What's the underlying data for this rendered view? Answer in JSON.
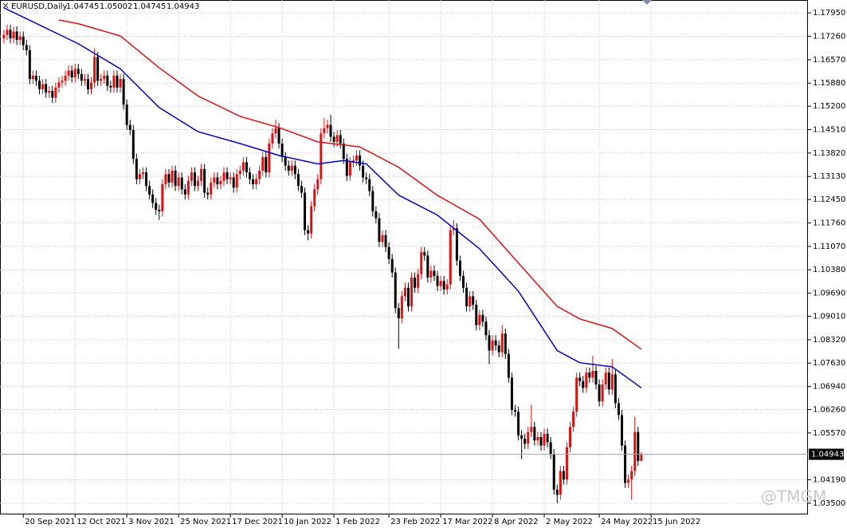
{
  "chart_data": {
    "type": "candlestick",
    "title": "EURUSD,Daily",
    "watermark": "@TMGM",
    "ylim": [
      1.0317,
      1.1833
    ],
    "xlim": [
      -1.2,
      248.5
    ],
    "grid": true,
    "up_color": "#e01010",
    "down_color": "#000000",
    "yticks": [
      {
        "value": 1.1795,
        "label": "1.17950"
      },
      {
        "value": 1.1726,
        "label": "1.17260"
      },
      {
        "value": 1.1657,
        "label": "1.16570"
      },
      {
        "value": 1.1588,
        "label": "1.15880"
      },
      {
        "value": 1.152,
        "label": "1.15200"
      },
      {
        "value": 1.1451,
        "label": "1.14510"
      },
      {
        "value": 1.1382,
        "label": "1.13820"
      },
      {
        "value": 1.1313,
        "label": "1.13130"
      },
      {
        "value": 1.1245,
        "label": "1.12450"
      },
      {
        "value": 1.1176,
        "label": "1.11760"
      },
      {
        "value": 1.1107,
        "label": "1.11070"
      },
      {
        "value": 1.1038,
        "label": "1.10380"
      },
      {
        "value": 1.0969,
        "label": "1.09690"
      },
      {
        "value": 1.0901,
        "label": "1.09010"
      },
      {
        "value": 1.0832,
        "label": "1.08320"
      },
      {
        "value": 1.0763,
        "label": "1.07630"
      },
      {
        "value": 1.0694,
        "label": "1.06940"
      },
      {
        "value": 1.0626,
        "label": "1.06260"
      },
      {
        "value": 1.0557,
        "label": "1.05570"
      },
      {
        "value": 1.0419,
        "label": "1.04190"
      },
      {
        "value": 1.035,
        "label": "1.03500"
      }
    ],
    "xticks": [
      {
        "value": 6,
        "label": "20 Sep 2021"
      },
      {
        "value": 22,
        "label": "12 Oct 2021"
      },
      {
        "value": 38,
        "label": "3 Nov 2021"
      },
      {
        "value": 54,
        "label": "25 Nov 2021"
      },
      {
        "value": 70,
        "label": "17 Dec 2021"
      },
      {
        "value": 86,
        "label": "10 Jan 2022"
      },
      {
        "value": 102,
        "label": "1 Feb 2022"
      },
      {
        "value": 119,
        "label": "23 Feb 2022"
      },
      {
        "value": 135,
        "label": "17 Mar 2022"
      },
      {
        "value": 151,
        "label": "8 Apr 2022"
      },
      {
        "value": 167,
        "label": "2 May 2022"
      },
      {
        "value": 184,
        "label": "24 May 2022"
      },
      {
        "value": 200,
        "label": "15 Jun 2022"
      }
    ],
    "ohlc": [
      [
        1.172,
        1.1745,
        1.1705,
        1.173
      ],
      [
        1.173,
        1.176,
        1.1715,
        1.1745
      ],
      [
        1.1745,
        1.176,
        1.1705,
        1.172
      ],
      [
        1.172,
        1.1755,
        1.1705,
        1.174
      ],
      [
        1.174,
        1.1755,
        1.17,
        1.1715
      ],
      [
        1.1715,
        1.174,
        1.17,
        1.1725
      ],
      [
        1.1725,
        1.174,
        1.1685,
        1.17
      ],
      [
        1.17,
        1.1715,
        1.167,
        1.1685
      ],
      [
        1.1685,
        1.17,
        1.1585,
        1.16
      ],
      [
        1.16,
        1.1625,
        1.1585,
        1.161
      ],
      [
        1.161,
        1.1625,
        1.158,
        1.1595
      ],
      [
        1.1595,
        1.161,
        1.1555,
        1.157
      ],
      [
        1.157,
        1.16,
        1.1555,
        1.1585
      ],
      [
        1.1585,
        1.16,
        1.1545,
        1.156
      ],
      [
        1.156,
        1.158,
        1.1545,
        1.1565
      ],
      [
        1.1565,
        1.158,
        1.153,
        1.1545
      ],
      [
        1.1545,
        1.159,
        1.153,
        1.1575
      ],
      [
        1.1575,
        1.1605,
        1.156,
        1.159
      ],
      [
        1.159,
        1.161,
        1.1575,
        1.1595
      ],
      [
        1.1595,
        1.1625,
        1.158,
        1.161
      ],
      [
        1.161,
        1.164,
        1.1595,
        1.1625
      ],
      [
        1.1625,
        1.164,
        1.159,
        1.1605
      ],
      [
        1.1605,
        1.1645,
        1.159,
        1.163
      ],
      [
        1.163,
        1.1645,
        1.16,
        1.1615
      ],
      [
        1.1615,
        1.163,
        1.158,
        1.1595
      ],
      [
        1.1595,
        1.1615,
        1.158,
        1.16
      ],
      [
        1.16,
        1.1615,
        1.1555,
        1.157
      ],
      [
        1.157,
        1.1605,
        1.1555,
        1.159
      ],
      [
        1.159,
        1.169,
        1.1575,
        1.1665
      ],
      [
        1.1665,
        1.168,
        1.158,
        1.1595
      ],
      [
        1.1595,
        1.1615,
        1.158,
        1.16
      ],
      [
        1.16,
        1.1625,
        1.1585,
        1.161
      ],
      [
        1.161,
        1.1625,
        1.1565,
        1.158
      ],
      [
        1.158,
        1.1595,
        1.156,
        1.1575
      ],
      [
        1.1575,
        1.1625,
        1.156,
        1.161
      ],
      [
        1.161,
        1.1625,
        1.156,
        1.1575
      ],
      [
        1.1575,
        1.1615,
        1.156,
        1.16
      ],
      [
        1.16,
        1.1615,
        1.151,
        1.1525
      ],
      [
        1.1525,
        1.154,
        1.145,
        1.1465
      ],
      [
        1.1465,
        1.148,
        1.1435,
        1.145
      ],
      [
        1.145,
        1.1465,
        1.135,
        1.1365
      ],
      [
        1.1365,
        1.138,
        1.129,
        1.1305
      ],
      [
        1.1305,
        1.1335,
        1.129,
        1.132
      ],
      [
        1.132,
        1.134,
        1.1305,
        1.1325
      ],
      [
        1.1325,
        1.134,
        1.127,
        1.1285
      ],
      [
        1.1285,
        1.13,
        1.1245,
        1.126
      ],
      [
        1.126,
        1.1275,
        1.122,
        1.1235
      ],
      [
        1.1235,
        1.125,
        1.12,
        1.1215
      ],
      [
        1.1215,
        1.123,
        1.1185,
        1.121
      ],
      [
        1.121,
        1.1305,
        1.1195,
        1.129
      ],
      [
        1.129,
        1.1335,
        1.1275,
        1.132
      ],
      [
        1.132,
        1.1335,
        1.128,
        1.1295
      ],
      [
        1.1295,
        1.1345,
        1.128,
        1.133
      ],
      [
        1.133,
        1.1345,
        1.127,
        1.1285
      ],
      [
        1.1285,
        1.1325,
        1.127,
        1.131
      ],
      [
        1.131,
        1.1325,
        1.126,
        1.1275
      ],
      [
        1.1275,
        1.129,
        1.1245,
        1.126
      ],
      [
        1.126,
        1.1315,
        1.1245,
        1.13
      ],
      [
        1.13,
        1.134,
        1.1285,
        1.1325
      ],
      [
        1.1325,
        1.134,
        1.127,
        1.1285
      ],
      [
        1.1285,
        1.1315,
        1.127,
        1.13
      ],
      [
        1.13,
        1.135,
        1.1285,
        1.1335
      ],
      [
        1.1335,
        1.135,
        1.125,
        1.1265
      ],
      [
        1.1265,
        1.128,
        1.1245,
        1.126
      ],
      [
        1.126,
        1.131,
        1.1245,
        1.1295
      ],
      [
        1.1295,
        1.1325,
        1.128,
        1.131
      ],
      [
        1.131,
        1.1325,
        1.1275,
        1.129
      ],
      [
        1.129,
        1.1315,
        1.1275,
        1.13
      ],
      [
        1.13,
        1.134,
        1.1285,
        1.1325
      ],
      [
        1.1325,
        1.134,
        1.129,
        1.1305
      ],
      [
        1.1305,
        1.1325,
        1.129,
        1.131
      ],
      [
        1.131,
        1.1325,
        1.1265,
        1.128
      ],
      [
        1.128,
        1.1335,
        1.1265,
        1.132
      ],
      [
        1.132,
        1.1345,
        1.1305,
        1.133
      ],
      [
        1.133,
        1.137,
        1.1315,
        1.1355
      ],
      [
        1.1355,
        1.137,
        1.131,
        1.1325
      ],
      [
        1.1325,
        1.134,
        1.129,
        1.1305
      ],
      [
        1.1305,
        1.132,
        1.1275,
        1.129
      ],
      [
        1.129,
        1.132,
        1.1275,
        1.1305
      ],
      [
        1.1305,
        1.1345,
        1.129,
        1.133
      ],
      [
        1.133,
        1.1385,
        1.1315,
        1.137
      ],
      [
        1.137,
        1.1385,
        1.131,
        1.1325
      ],
      [
        1.1325,
        1.1425,
        1.131,
        1.141
      ],
      [
        1.141,
        1.1455,
        1.1395,
        1.144
      ],
      [
        1.144,
        1.148,
        1.1425,
        1.1455
      ],
      [
        1.1455,
        1.147,
        1.1395,
        1.141
      ],
      [
        1.141,
        1.1425,
        1.1355,
        1.137
      ],
      [
        1.137,
        1.1385,
        1.133,
        1.1345
      ],
      [
        1.1345,
        1.136,
        1.1315,
        1.133
      ],
      [
        1.133,
        1.136,
        1.1315,
        1.1345
      ],
      [
        1.1345,
        1.136,
        1.1305,
        1.132
      ],
      [
        1.132,
        1.1335,
        1.127,
        1.1285
      ],
      [
        1.1285,
        1.13,
        1.125,
        1.1265
      ],
      [
        1.1265,
        1.128,
        1.114,
        1.1155
      ],
      [
        1.1155,
        1.117,
        1.1125,
        1.1145
      ],
      [
        1.1145,
        1.124,
        1.113,
        1.1225
      ],
      [
        1.1225,
        1.129,
        1.121,
        1.1275
      ],
      [
        1.1275,
        1.132,
        1.126,
        1.1305
      ],
      [
        1.1305,
        1.1455,
        1.129,
        1.144
      ],
      [
        1.144,
        1.1485,
        1.1425,
        1.1455
      ],
      [
        1.1455,
        1.148,
        1.144,
        1.1465
      ],
      [
        1.1465,
        1.1495,
        1.1415,
        1.143
      ],
      [
        1.143,
        1.1445,
        1.14,
        1.1415
      ],
      [
        1.1415,
        1.145,
        1.14,
        1.1435
      ],
      [
        1.1435,
        1.145,
        1.1395,
        1.141
      ],
      [
        1.141,
        1.1425,
        1.135,
        1.1365
      ],
      [
        1.1365,
        1.138,
        1.13,
        1.1315
      ],
      [
        1.1315,
        1.137,
        1.13,
        1.1355
      ],
      [
        1.1355,
        1.1375,
        1.134,
        1.136
      ],
      [
        1.136,
        1.139,
        1.1345,
        1.1375
      ],
      [
        1.1375,
        1.139,
        1.133,
        1.1345
      ],
      [
        1.1345,
        1.136,
        1.1295,
        1.131
      ],
      [
        1.131,
        1.1325,
        1.129,
        1.1305
      ],
      [
        1.1305,
        1.132,
        1.1255,
        1.127
      ],
      [
        1.127,
        1.1285,
        1.1195,
        1.121
      ],
      [
        1.121,
        1.1225,
        1.1175,
        1.119
      ],
      [
        1.119,
        1.1205,
        1.1105,
        1.112
      ],
      [
        1.112,
        1.1155,
        1.1105,
        1.114
      ],
      [
        1.114,
        1.1155,
        1.109,
        1.1105
      ],
      [
        1.1105,
        1.112,
        1.1055,
        1.107
      ],
      [
        1.107,
        1.1085,
        1.1015,
        1.103
      ],
      [
        1.103,
        1.1045,
        1.091,
        1.0925
      ],
      [
        1.0925,
        1.094,
        1.0805,
        1.0895
      ],
      [
        1.0895,
        1.0975,
        1.088,
        1.096
      ],
      [
        1.096,
        1.1,
        1.0945,
        1.0985
      ],
      [
        1.0985,
        1.1,
        1.0915,
        1.093
      ],
      [
        1.093,
        1.103,
        1.0915,
        1.1015
      ],
      [
        1.1015,
        1.103,
        1.097,
        1.0985
      ],
      [
        1.0985,
        1.104,
        1.097,
        1.1025
      ],
      [
        1.1025,
        1.1105,
        1.101,
        1.109
      ],
      [
        1.109,
        1.1105,
        1.1065,
        1.108
      ],
      [
        1.108,
        1.1095,
        1.1,
        1.1015
      ],
      [
        1.1015,
        1.105,
        1.1,
        1.1035
      ],
      [
        1.1035,
        1.105,
        1.1005,
        1.102
      ],
      [
        1.102,
        1.1035,
        1.0975,
        1.099
      ],
      [
        1.099,
        1.102,
        1.0975,
        1.1005
      ],
      [
        1.1005,
        1.102,
        1.0965,
        1.098
      ],
      [
        1.098,
        1.101,
        1.0965,
        1.0995
      ],
      [
        1.0995,
        1.117,
        1.098,
        1.1155
      ],
      [
        1.1155,
        1.1185,
        1.114,
        1.116
      ],
      [
        1.116,
        1.1175,
        1.105,
        1.1065
      ],
      [
        1.1065,
        1.108,
        1.1005,
        1.102
      ],
      [
        1.102,
        1.1035,
        1.097,
        1.0985
      ],
      [
        1.0985,
        1.1,
        1.0915,
        1.093
      ],
      [
        1.093,
        1.0975,
        1.0915,
        1.096
      ],
      [
        1.096,
        1.0975,
        1.092,
        1.0935
      ],
      [
        1.0935,
        1.095,
        1.086,
        1.0875
      ],
      [
        1.0875,
        1.092,
        1.086,
        1.0905
      ],
      [
        1.0905,
        1.092,
        1.087,
        1.0885
      ],
      [
        1.0885,
        1.09,
        1.083,
        1.0845
      ],
      [
        1.0845,
        1.086,
        1.076,
        1.08
      ],
      [
        1.08,
        1.0845,
        1.0785,
        1.083
      ],
      [
        1.083,
        1.0845,
        1.08,
        1.0815
      ],
      [
        1.0815,
        1.083,
        1.078,
        1.0795
      ],
      [
        1.0795,
        1.0875,
        1.078,
        1.085
      ],
      [
        1.085,
        1.0865,
        1.0775,
        1.079
      ],
      [
        1.079,
        1.0805,
        1.0705,
        1.072
      ],
      [
        1.072,
        1.0735,
        1.061,
        1.0625
      ],
      [
        1.0625,
        1.064,
        1.0605,
        1.062
      ],
      [
        1.062,
        1.0635,
        1.0535,
        1.055
      ],
      [
        1.055,
        1.0565,
        1.048,
        1.054
      ],
      [
        1.054,
        1.0555,
        1.051,
        1.0525
      ],
      [
        1.0525,
        1.0575,
        1.051,
        1.056
      ],
      [
        1.056,
        1.064,
        1.0545,
        1.0575
      ],
      [
        1.0575,
        1.059,
        1.052,
        1.0535
      ],
      [
        1.0535,
        1.056,
        1.052,
        1.0545
      ],
      [
        1.0545,
        1.056,
        1.0505,
        1.052
      ],
      [
        1.052,
        1.057,
        1.0505,
        1.0555
      ],
      [
        1.0555,
        1.057,
        1.0515,
        1.053
      ],
      [
        1.053,
        1.0545,
        1.048,
        1.0495
      ],
      [
        1.0495,
        1.051,
        1.0375,
        1.039
      ],
      [
        1.039,
        1.0405,
        1.035,
        1.0375
      ],
      [
        1.0375,
        1.046,
        1.036,
        1.0445
      ],
      [
        1.0445,
        1.046,
        1.0405,
        1.042
      ],
      [
        1.042,
        1.053,
        1.0405,
        1.0515
      ],
      [
        1.0515,
        1.059,
        1.05,
        1.0575
      ],
      [
        1.0575,
        1.0635,
        1.056,
        1.062
      ],
      [
        1.062,
        1.0735,
        1.0605,
        1.072
      ],
      [
        1.072,
        1.0735,
        1.0695,
        1.071
      ],
      [
        1.071,
        1.0725,
        1.0675,
        1.069
      ],
      [
        1.069,
        1.075,
        1.0675,
        1.0735
      ],
      [
        1.0735,
        1.075,
        1.0705,
        1.072
      ],
      [
        1.072,
        1.0785,
        1.0705,
        1.074
      ],
      [
        1.074,
        1.0755,
        1.0685,
        1.07
      ],
      [
        1.07,
        1.0715,
        1.0635,
        1.065
      ],
      [
        1.065,
        1.0715,
        1.0635,
        1.07
      ],
      [
        1.07,
        1.075,
        1.0685,
        1.0735
      ],
      [
        1.0735,
        1.075,
        1.067,
        1.0685
      ],
      [
        1.0685,
        1.0775,
        1.067,
        1.073
      ],
      [
        1.073,
        1.0745,
        1.063,
        1.0645
      ],
      [
        1.0645,
        1.066,
        1.0595,
        1.061
      ],
      [
        1.061,
        1.0625,
        1.0505,
        1.052
      ],
      [
        1.052,
        1.0535,
        1.0395,
        1.041
      ],
      [
        1.041,
        1.0435,
        1.0395,
        1.042
      ],
      [
        1.042,
        1.046,
        1.036,
        1.0445
      ],
      [
        1.0445,
        1.0605,
        1.043,
        1.056
      ],
      [
        1.056,
        1.0575,
        1.046,
        1.04745
      ],
      [
        1.04745,
        1.05002,
        1.04745,
        1.04943
      ]
    ],
    "lines": [
      {
        "color": "#0000c8",
        "x": [
          0,
          23,
          36,
          48,
          60,
          73,
          85,
          97,
          105,
          112,
          122,
          134,
          147,
          159,
          171,
          178,
          188,
          197
        ],
        "values": [
          1.181,
          1.1704,
          1.163,
          1.1516,
          1.1445,
          1.141,
          1.1375,
          1.135,
          1.136,
          1.135,
          1.1258,
          1.1199,
          1.11,
          1.0975,
          1.08,
          1.0764,
          1.0752,
          1.069
        ]
      },
      {
        "color": "#e01010",
        "x": [
          17,
          23,
          36,
          48,
          60,
          73,
          85,
          97,
          110,
          122,
          134,
          147,
          159,
          171,
          178,
          188,
          197
        ],
        "values": [
          1.1774,
          1.1763,
          1.1727,
          1.1633,
          1.155,
          1.149,
          1.1457,
          1.1415,
          1.14,
          1.134,
          1.1257,
          1.1187,
          1.1058,
          1.093,
          1.0893,
          1.0865,
          1.0804
        ]
      }
    ]
  }
}
